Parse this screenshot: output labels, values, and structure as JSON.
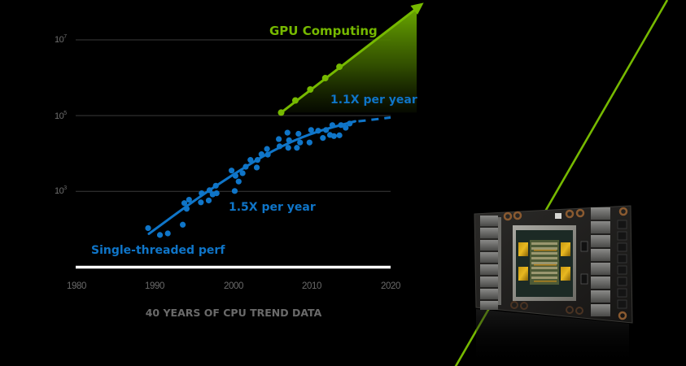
{
  "colors": {
    "background": "#000000",
    "gpu_green": "#76b900",
    "cpu_blue": "#0f75c8",
    "grid": "#3a3a3a",
    "baseline": "#ffffff",
    "axis_text": "#6a6a6a"
  },
  "chart_data": {
    "type": "scatter",
    "title": "40 YEARS OF CPU TREND DATA",
    "xlabel": "",
    "ylabel": "",
    "xscale": "linear",
    "yscale": "log10",
    "xlim": [
      1980,
      2020
    ],
    "ylim_log10": [
      1,
      7.8
    ],
    "x_ticks": [
      "1980",
      "1990",
      "2000",
      "2010",
      "2020"
    ],
    "y_ticks": [
      {
        "base": "10",
        "exp": "7",
        "log10": 7
      },
      {
        "base": "10",
        "exp": "5",
        "log10": 5
      },
      {
        "base": "10",
        "exp": "3",
        "log10": 3
      }
    ],
    "grid": "horizontal",
    "series": [
      {
        "name": "Single-threaded perf",
        "color": "#0f75c8",
        "kind": "scatter+trend",
        "growth_label": "1.5X per year",
        "points": [
          [
            1989.2,
            2.03
          ],
          [
            1990.7,
            1.85
          ],
          [
            1991.7,
            1.89
          ],
          [
            1993.6,
            2.12
          ],
          [
            1993.8,
            2.69
          ],
          [
            1994.1,
            2.54
          ],
          [
            1994.4,
            2.78
          ],
          [
            1995.9,
            2.71
          ],
          [
            1996.0,
            2.95
          ],
          [
            1996.9,
            2.76
          ],
          [
            1997.0,
            3.03
          ],
          [
            1997.4,
            2.92
          ],
          [
            1997.8,
            3.15
          ],
          [
            1997.9,
            2.95
          ],
          [
            1999.8,
            3.55
          ],
          [
            2000.2,
            3.01
          ],
          [
            2000.3,
            3.41
          ],
          [
            2000.7,
            3.26
          ],
          [
            2001.2,
            3.48
          ],
          [
            2001.6,
            3.65
          ],
          [
            2002.2,
            3.83
          ],
          [
            2003.0,
            3.63
          ],
          [
            2003.1,
            3.83
          ],
          [
            2003.6,
            3.98
          ],
          [
            2004.3,
            4.12
          ],
          [
            2004.4,
            3.97
          ],
          [
            2005.8,
            4.38
          ],
          [
            2005.9,
            4.19
          ],
          [
            2006.9,
            4.55
          ],
          [
            2007.0,
            4.15
          ],
          [
            2007.1,
            4.35
          ],
          [
            2008.1,
            4.15
          ],
          [
            2008.3,
            4.52
          ],
          [
            2008.5,
            4.29
          ],
          [
            2009.7,
            4.29
          ],
          [
            2009.9,
            4.62
          ],
          [
            2010.8,
            4.6
          ],
          [
            2011.4,
            4.41
          ],
          [
            2011.8,
            4.62
          ],
          [
            2012.3,
            4.49
          ],
          [
            2012.6,
            4.75
          ],
          [
            2012.8,
            4.46
          ],
          [
            2013.5,
            4.48
          ],
          [
            2013.7,
            4.75
          ],
          [
            2014.3,
            4.68
          ],
          [
            2014.8,
            4.79
          ]
        ],
        "trend_solid": [
          [
            1989.3,
            1.88
          ],
          [
            1995,
            2.75
          ],
          [
            2000,
            3.45
          ],
          [
            2005,
            4.08
          ],
          [
            2010,
            4.55
          ],
          [
            2015.5,
            4.85
          ]
        ],
        "trend_dashed": [
          [
            2015.5,
            4.85
          ],
          [
            2020,
            4.95
          ]
        ]
      },
      {
        "name": "GPU Computing",
        "color": "#76b900",
        "kind": "line+markers",
        "growth_label": "1.1X per year",
        "points": [
          [
            2006.1,
            5.08
          ],
          [
            2007.9,
            5.4
          ],
          [
            2009.8,
            5.69
          ],
          [
            2011.7,
            5.99
          ],
          [
            2013.5,
            6.29
          ]
        ],
        "arrow_to": [
          2024.2,
          7.98
        ]
      }
    ],
    "annotations": [
      {
        "text": "GPU Computing",
        "series": "GPU Computing"
      },
      {
        "text": "1.1X per year",
        "series": "CPU"
      },
      {
        "text": "1.5X per year",
        "series": "CPU"
      },
      {
        "text": "Single-threaded perf",
        "series": "CPU"
      }
    ]
  },
  "labels": {
    "gpu_computing": "GPU Computing",
    "gpu_rate": "1.1X per year",
    "cpu_rate": "1.5X per year",
    "cpu_series": "Single-threaded perf",
    "caption": "40 YEARS OF CPU TREND DATA",
    "ytick_base": "10",
    "ytick_exp_7": "7",
    "ytick_exp_5": "5",
    "ytick_exp_3": "3",
    "xtick_1980": "1980",
    "xtick_1990": "1990",
    "xtick_2000": "2000",
    "xtick_2010": "2010",
    "xtick_2020": "2020"
  },
  "image": {
    "subject": "gpu-accelerator-board",
    "description": "GPU module board with central die and HBM stacks"
  }
}
